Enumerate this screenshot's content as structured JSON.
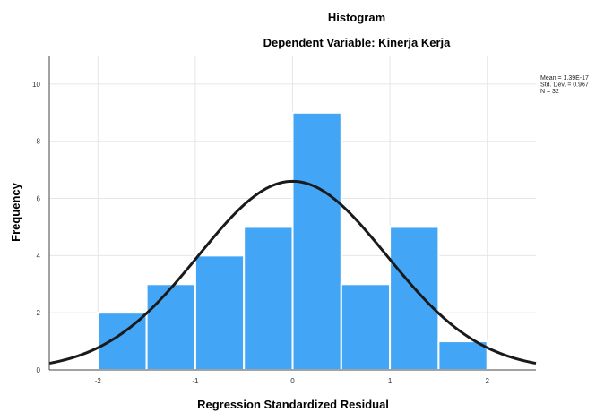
{
  "chart_data": {
    "type": "bar",
    "title": "Histogram",
    "subtitle": "Dependent Variable: Kinerja Kerja",
    "xlabel": "Regression Standardized Residual",
    "ylabel": "Frequency",
    "xlim": [
      -2.5,
      2.5
    ],
    "ylim": [
      0,
      11
    ],
    "xticks": [
      "-2",
      "-1",
      "0",
      "1",
      "2"
    ],
    "yticks": [
      "0",
      "2",
      "4",
      "6",
      "8",
      "10"
    ],
    "bin_width": 0.5,
    "bins": [
      {
        "start": -2.0,
        "end": -1.5,
        "value": 2
      },
      {
        "start": -1.5,
        "end": -1.0,
        "value": 3
      },
      {
        "start": -1.0,
        "end": -0.5,
        "value": 4
      },
      {
        "start": -0.5,
        "end": 0.0,
        "value": 5
      },
      {
        "start": 0.0,
        "end": 0.5,
        "value": 9
      },
      {
        "start": 0.5,
        "end": 1.0,
        "value": 3
      },
      {
        "start": 1.0,
        "end": 1.5,
        "value": 5
      },
      {
        "start": 1.5,
        "end": 2.0,
        "value": 1
      }
    ],
    "normal_curve": {
      "mean": 0,
      "std_dev": 0.967,
      "n": 32
    },
    "stats_lines": [
      "Mean = 1.39E-17",
      "Std. Dev. = 0.967",
      "N = 32"
    ],
    "grid": true,
    "bar_color": "#42a5f5",
    "curve_color": "#1a1a1a"
  }
}
